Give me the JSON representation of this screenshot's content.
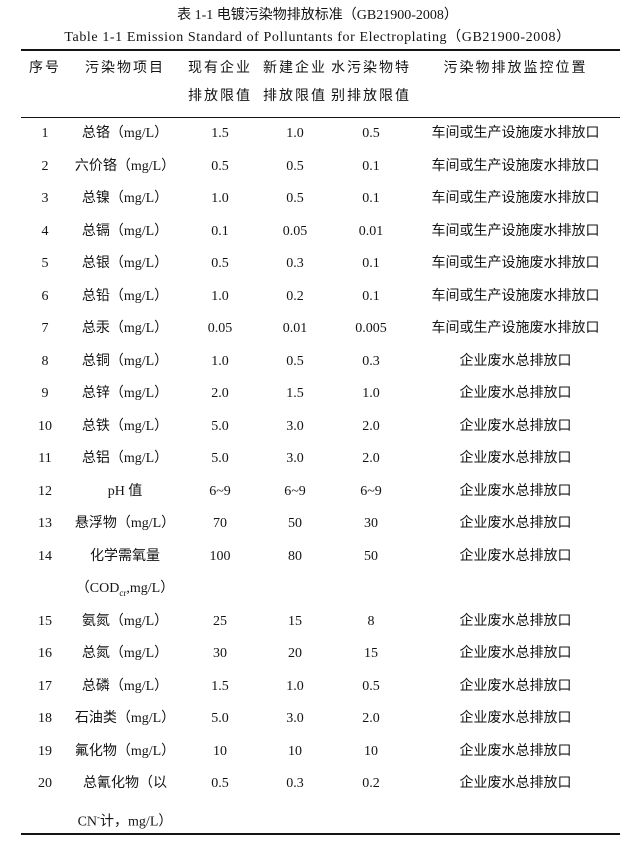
{
  "page": {
    "title_cn": "表 1-1 电镀污染物排放标准（GB21900-2008）",
    "title_en": "Table 1-1 Emission Standard of Polluntants for Electroplating（GB21900-2008）"
  },
  "table": {
    "headers": [
      {
        "line1": "序号",
        "line2": ""
      },
      {
        "line1": "污染物项目",
        "line2": ""
      },
      {
        "line1": "现有企业",
        "line2": "排放限值"
      },
      {
        "line1": "新建企业",
        "line2": "排放限值"
      },
      {
        "line1": "水污染物特",
        "line2": "别排放限值"
      },
      {
        "line1": "污染物排放监控位置",
        "line2": ""
      }
    ],
    "rows": [
      {
        "no": "1",
        "name_lines": [
          [
            {
              "t": "总铬（mg/L）"
            }
          ]
        ],
        "limits": [
          "1.5",
          "1.0",
          "0.5"
        ],
        "location": "车间或生产设施废水排放口"
      },
      {
        "no": "2",
        "name_lines": [
          [
            {
              "t": "六价铬（mg/L）"
            }
          ]
        ],
        "limits": [
          "0.5",
          "0.5",
          "0.1"
        ],
        "location": "车间或生产设施废水排放口"
      },
      {
        "no": "3",
        "name_lines": [
          [
            {
              "t": "总镍（mg/L）"
            }
          ]
        ],
        "limits": [
          "1.0",
          "0.5",
          "0.1"
        ],
        "location": "车间或生产设施废水排放口"
      },
      {
        "no": "4",
        "name_lines": [
          [
            {
              "t": "总镉（mg/L）"
            }
          ]
        ],
        "limits": [
          "0.1",
          "0.05",
          "0.01"
        ],
        "location": "车间或生产设施废水排放口"
      },
      {
        "no": "5",
        "name_lines": [
          [
            {
              "t": "总银（mg/L）"
            }
          ]
        ],
        "limits": [
          "0.5",
          "0.3",
          "0.1"
        ],
        "location": "车间或生产设施废水排放口"
      },
      {
        "no": "6",
        "name_lines": [
          [
            {
              "t": "总铅（mg/L）"
            }
          ]
        ],
        "limits": [
          "1.0",
          "0.2",
          "0.1"
        ],
        "location": "车间或生产设施废水排放口"
      },
      {
        "no": "7",
        "name_lines": [
          [
            {
              "t": "总汞（mg/L）"
            }
          ]
        ],
        "limits": [
          "0.05",
          "0.01",
          "0.005"
        ],
        "location": "车间或生产设施废水排放口"
      },
      {
        "no": "8",
        "name_lines": [
          [
            {
              "t": "总铜（mg/L）"
            }
          ]
        ],
        "limits": [
          "1.0",
          "0.5",
          "0.3"
        ],
        "location": "企业废水总排放口"
      },
      {
        "no": "9",
        "name_lines": [
          [
            {
              "t": "总锌（mg/L）"
            }
          ]
        ],
        "limits": [
          "2.0",
          "1.5",
          "1.0"
        ],
        "location": "企业废水总排放口"
      },
      {
        "no": "10",
        "name_lines": [
          [
            {
              "t": "总铁（mg/L）"
            }
          ]
        ],
        "limits": [
          "5.0",
          "3.0",
          "2.0"
        ],
        "location": "企业废水总排放口"
      },
      {
        "no": "11",
        "name_lines": [
          [
            {
              "t": "总铝（mg/L）"
            }
          ]
        ],
        "limits": [
          "5.0",
          "3.0",
          "2.0"
        ],
        "location": "企业废水总排放口"
      },
      {
        "no": "12",
        "name_lines": [
          [
            {
              "t": "pH 值"
            }
          ]
        ],
        "limits": [
          "6~9",
          "6~9",
          "6~9"
        ],
        "location": "企业废水总排放口"
      },
      {
        "no": "13",
        "name_lines": [
          [
            {
              "t": "悬浮物（mg/L）"
            }
          ]
        ],
        "limits": [
          "70",
          "50",
          "30"
        ],
        "location": "企业废水总排放口"
      },
      {
        "no": "14",
        "name_lines": [
          [
            {
              "t": "化学需氧量"
            }
          ],
          [
            {
              "t": "（COD"
            },
            {
              "t": "cr",
              "s": "sub"
            },
            {
              "t": ",mg/L）"
            }
          ]
        ],
        "limits": [
          "100",
          "80",
          "50"
        ],
        "location": "企业废水总排放口"
      },
      {
        "no": "15",
        "name_lines": [
          [
            {
              "t": "氨氮（mg/L）"
            }
          ]
        ],
        "limits": [
          "25",
          "15",
          "8"
        ],
        "location": "企业废水总排放口"
      },
      {
        "no": "16",
        "name_lines": [
          [
            {
              "t": "总氮（mg/L）"
            }
          ]
        ],
        "limits": [
          "30",
          "20",
          "15"
        ],
        "location": "企业废水总排放口"
      },
      {
        "no": "17",
        "name_lines": [
          [
            {
              "t": "总磷（mg/L）"
            }
          ]
        ],
        "limits": [
          "1.5",
          "1.0",
          "0.5"
        ],
        "location": "企业废水总排放口"
      },
      {
        "no": "18",
        "name_lines": [
          [
            {
              "t": "石油类（mg/L）"
            }
          ]
        ],
        "limits": [
          "5.0",
          "3.0",
          "2.0"
        ],
        "location": "企业废水总排放口"
      },
      {
        "no": "19",
        "name_lines": [
          [
            {
              "t": "氟化物（mg/L）"
            }
          ]
        ],
        "limits": [
          "10",
          "10",
          "10"
        ],
        "location": "企业废水总排放口"
      },
      {
        "no": "20",
        "name_lines": [
          [
            {
              "t": "总氰化物（以"
            }
          ],
          [
            {
              "t": "CN"
            },
            {
              "t": "-",
              "s": "sup"
            },
            {
              "t": "计，mg/L）"
            }
          ]
        ],
        "limits": [
          "0.5",
          "0.3",
          "0.2"
        ],
        "location": "企业废水总排放口"
      }
    ]
  }
}
